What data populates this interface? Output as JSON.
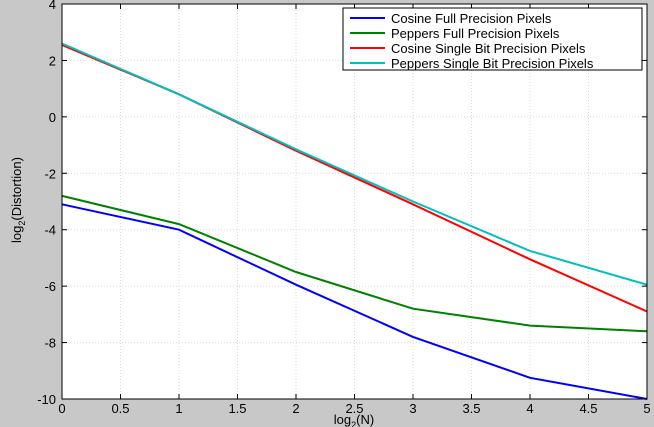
{
  "chart_data": {
    "type": "line",
    "title": "",
    "xlabel_base": "log",
    "xlabel_sub": "2",
    "xlabel_arg": "(N)",
    "ylabel_base": "log",
    "ylabel_sub": "2",
    "ylabel_arg": "(Distortion)",
    "xlim": [
      0,
      5
    ],
    "ylim": [
      -10,
      4
    ],
    "xticks": [
      "0",
      "0.5",
      "1",
      "1.5",
      "2",
      "2.5",
      "3",
      "3.5",
      "4",
      "4.5",
      "5"
    ],
    "yticks": [
      "-10",
      "-8",
      "-6",
      "-4",
      "-2",
      "0",
      "2",
      "4"
    ],
    "grid": true,
    "legend_position": "top-right",
    "x": [
      0,
      1,
      2,
      3,
      4,
      5
    ],
    "series": [
      {
        "name": "Cosine Full Precision Pixels",
        "color": "#0000ff",
        "values": [
          -3.1,
          -4.0,
          -5.95,
          -7.8,
          -9.25,
          -10.0
        ]
      },
      {
        "name": "Peppers Full Precision Pixels",
        "color": "#008000",
        "values": [
          -2.8,
          -3.8,
          -5.5,
          -6.8,
          -7.4,
          -7.6
        ]
      },
      {
        "name": "Cosine Single Bit Precision Pixels",
        "color": "#ff0000",
        "values": [
          2.55,
          0.8,
          -1.2,
          -3.1,
          -5.05,
          -6.9
        ]
      },
      {
        "name": "Peppers Single Bit Precision Pixels",
        "color": "#00bfbf",
        "values": [
          2.6,
          0.8,
          -1.15,
          -3.0,
          -4.75,
          -5.95
        ]
      }
    ]
  }
}
